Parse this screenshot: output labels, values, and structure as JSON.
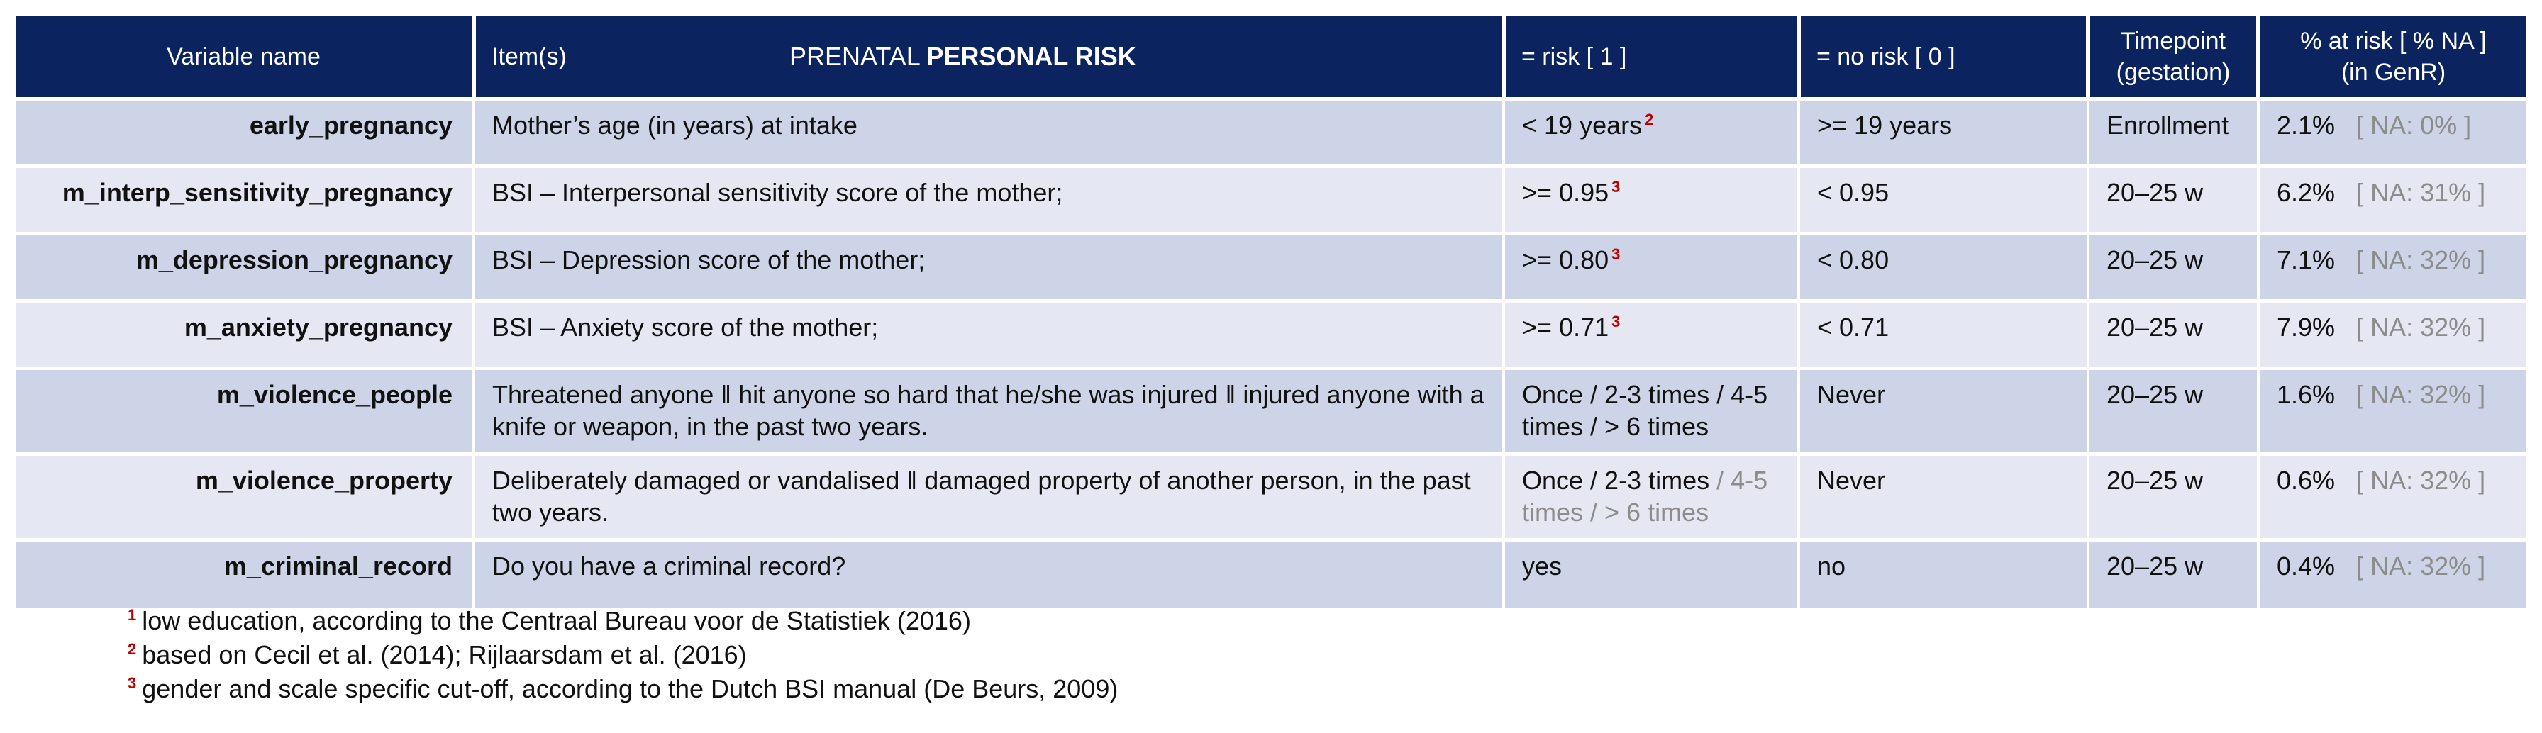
{
  "header": {
    "variable_name": "Variable name",
    "items": "Item(s)",
    "title_regular": "PRENATAL",
    "title_bold": "PERSONAL RISK",
    "risk": "= risk [ 1 ]",
    "no_risk": "= no risk [ 0 ]",
    "timepoint_line1": "Timepoint",
    "timepoint_line2": "(gestation)",
    "pct_line1": "% at risk [ % NA ]",
    "pct_line2": "(in GenR)"
  },
  "rows": [
    {
      "variable": "early_pregnancy",
      "item": "Mother’s age (in years) at intake",
      "risk": "< 19 years",
      "risk_note": "2",
      "no_risk": ">= 19 years",
      "timepoint": "Enrollment",
      "pct": "2.1%",
      "na": "[ NA:  0% ]"
    },
    {
      "variable": "m_interp_sensitivity_pregnancy",
      "item": "BSI – Interpersonal sensitivity score of the mother;",
      "risk": ">= 0.95",
      "risk_note": "3",
      "no_risk": "< 0.95",
      "timepoint": "20–25 w",
      "pct": "6.2%",
      "na": "[ NA: 31% ]"
    },
    {
      "variable": "m_depression_pregnancy",
      "item": "BSI – Depression score of the mother;",
      "risk": ">= 0.80",
      "risk_note": "3",
      "no_risk": "< 0.80",
      "timepoint": "20–25 w",
      "pct": "7.1%",
      "na": "[ NA: 32% ]"
    },
    {
      "variable": "m_anxiety_pregnancy",
      "item": "BSI – Anxiety score of the mother;",
      "risk": ">= 0.71",
      "risk_note": "3",
      "no_risk": "< 0.71",
      "timepoint": "20–25 w",
      "pct": "7.9%",
      "na": "[ NA: 32% ]"
    },
    {
      "variable": "m_violence_people",
      "item": "Threatened anyone ǁ hit anyone so hard that he/she was injured ǁ injured anyone with a knife or weapon, in the past two years.",
      "risk": "Once / 2-3 times / 4-5 times / > 6 times",
      "no_risk": "Never",
      "timepoint": "20–25 w",
      "pct": "1.6%",
      "na": "[ NA: 32% ]"
    },
    {
      "variable": "m_violence_property",
      "item": "Deliberately damaged or vandalised ǁ damaged property of another person, in the past two years.",
      "risk": "Once / 2-3 times",
      "risk_gray": " / 4-5 times / > 6 times",
      "no_risk": "Never",
      "timepoint": "20–25 w",
      "pct": "0.6%",
      "na": "[ NA: 32% ]"
    },
    {
      "variable": "m_criminal_record",
      "item": "Do you have a criminal record?",
      "risk": "yes",
      "no_risk": "no",
      "timepoint": "20–25 w",
      "pct": "0.4%",
      "na": "[ NA: 32% ]"
    }
  ],
  "footnotes": [
    {
      "mark": "1",
      "text": "low education, according to the Centraal Bureau voor de Statistiek (2016)"
    },
    {
      "mark": "2",
      "text": "based on Cecil et al. (2014); Rijlaarsdam et al. (2016)"
    },
    {
      "mark": "3",
      "text": "gender and scale specific cut-off, according to the Dutch BSI manual (De Beurs, 2009)"
    }
  ],
  "colors": {
    "header_bg": "#0b2460",
    "row_odd": "#ced4e8",
    "row_even": "#e5e8f3",
    "footnote_mark": "#c00000",
    "na_text": "#8c8c8c"
  }
}
